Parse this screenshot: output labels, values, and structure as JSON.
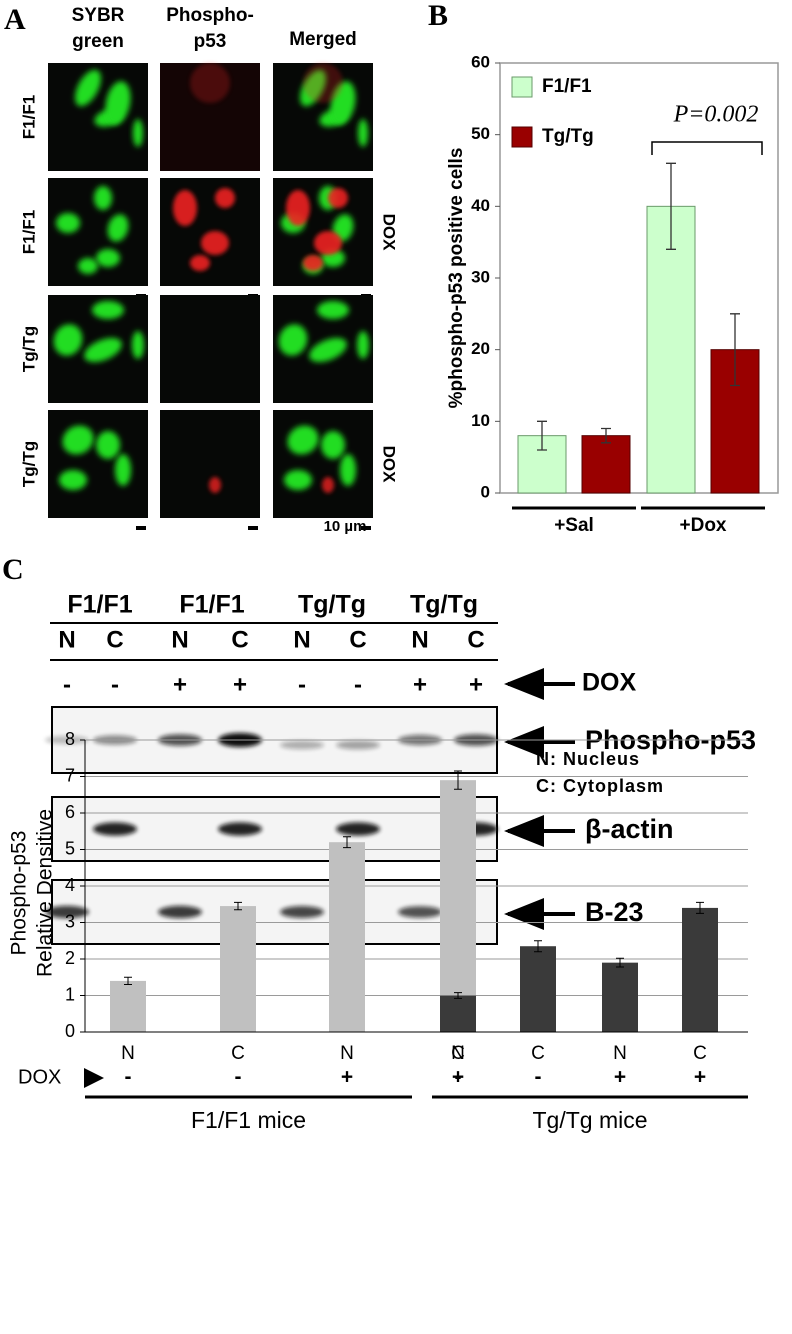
{
  "panel_labels": [
    "A",
    "B",
    "C"
  ],
  "panel_a": {
    "columns": [
      [
        "SYBR",
        "green"
      ],
      [
        "Phospho-",
        "p53"
      ],
      [
        "Merged"
      ]
    ],
    "rows": [
      {
        "label": "F1/F1"
      },
      {
        "label": "F1/F1",
        "treatment": "DOX"
      },
      {
        "label": "Tg/Tg"
      },
      {
        "label": "Tg/Tg",
        "treatment": "DOX"
      }
    ],
    "scale_bar": "10 µm"
  },
  "blot": {
    "groups": [
      "F1/F1",
      "F1/F1",
      "Tg/Tg",
      "Tg/Tg"
    ],
    "lanes": [
      "N",
      "C",
      "N",
      "C",
      "N",
      "C",
      "N",
      "C"
    ],
    "dox_signs": [
      "-",
      "-",
      "+",
      "+",
      "-",
      "-",
      "+",
      "+"
    ],
    "treatment_label": "DOX",
    "rows": [
      "Phospho-p53",
      "β-actin",
      "B-23"
    ]
  },
  "chart_data": [
    {
      "type": "bar",
      "ylabel": "%phospho-p53 positive cells",
      "categories": [
        "+Sal",
        "+Dox"
      ],
      "series": [
        {
          "name": "F1/F1",
          "color": "#ccffcc",
          "values": [
            8,
            40
          ],
          "errors": [
            2,
            6
          ]
        },
        {
          "name": "Tg/Tg",
          "color": "#990000",
          "values": [
            8,
            20
          ],
          "errors": [
            1,
            5
          ]
        }
      ],
      "ylim": [
        0,
        60
      ],
      "yticks": [
        0,
        10,
        20,
        30,
        40,
        50,
        60
      ],
      "grid": false,
      "annotation": "P=0.002"
    },
    {
      "type": "grouped-bar",
      "ylabel": [
        "Phospho-p53",
        "Relative Densitive"
      ],
      "groups": [
        {
          "name": "F1/F1 mice",
          "color": "#c0c0c0",
          "categories": [
            "N",
            "C",
            "N",
            "C"
          ],
          "dox": [
            "-",
            "-",
            "+",
            "+"
          ],
          "values": [
            1.4,
            3.45,
            5.2,
            6.9
          ],
          "errors": [
            0.1,
            0.1,
            0.15,
            0.25
          ]
        },
        {
          "name": "Tg/Tg mice",
          "color": "#3a3a3a",
          "categories": [
            "N",
            "C",
            "N",
            "C"
          ],
          "dox": [
            "-",
            "-",
            "+",
            "+"
          ],
          "values": [
            1.0,
            2.35,
            1.9,
            3.4
          ],
          "errors": [
            0.08,
            0.15,
            0.12,
            0.15
          ]
        }
      ],
      "treatment_label": "DOX",
      "notes": [
        "N: Nucleus",
        "C: Cytoplasm"
      ],
      "ylim": [
        0,
        8
      ],
      "yticks": [
        0,
        1,
        2,
        3,
        4,
        5,
        6,
        7,
        8
      ],
      "grid": true
    }
  ]
}
